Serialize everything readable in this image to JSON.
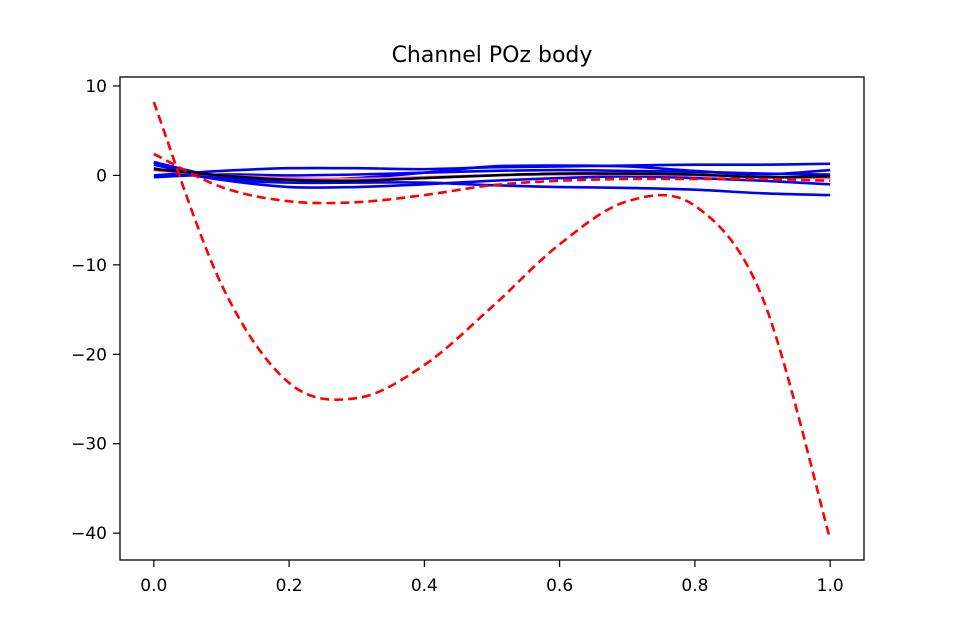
{
  "chart_data": {
    "type": "line",
    "title": "Channel POz body",
    "xlabel": "",
    "ylabel": "",
    "xlim": [
      -0.05,
      1.05
    ],
    "ylim": [
      -43,
      11
    ],
    "xticks": [
      0.0,
      0.2,
      0.4,
      0.6,
      0.8,
      1.0
    ],
    "xtick_labels": [
      "0.0",
      "0.2",
      "0.4",
      "0.6",
      "0.8",
      "1.0"
    ],
    "yticks": [
      10,
      0,
      -10,
      -20,
      -30,
      -40
    ],
    "ytick_labels": [
      "10",
      "0",
      "−10",
      "−20",
      "−30",
      "−40"
    ],
    "grid": false,
    "legend": "none",
    "colors": {
      "blue": "#0000ff",
      "red": "#ff0000",
      "black": "#000000",
      "pink": "#ff69b4"
    },
    "x": [
      0.0,
      0.1,
      0.2,
      0.3,
      0.4,
      0.5,
      0.6,
      0.7,
      0.8,
      0.9,
      1.0
    ],
    "series": [
      {
        "style": "solid",
        "color": "#0000ff",
        "values": [
          1.5,
          -0.2,
          -0.5,
          -0.3,
          0.3,
          1.0,
          1.1,
          1.0,
          0.5,
          0.1,
          0.6
        ]
      },
      {
        "style": "solid",
        "color": "#0000ff",
        "values": [
          0.0,
          0.5,
          0.8,
          0.8,
          0.7,
          0.9,
          1.0,
          1.1,
          1.2,
          1.2,
          1.3
        ]
      },
      {
        "style": "solid",
        "color": "#0000ff",
        "values": [
          0.8,
          -0.5,
          -1.3,
          -1.3,
          -1.0,
          -0.6,
          -0.3,
          -0.1,
          -0.3,
          -0.6,
          -1.0
        ]
      },
      {
        "style": "solid",
        "color": "#0000ff",
        "values": [
          1.2,
          -0.4,
          -0.8,
          -0.8,
          -0.8,
          -1.1,
          -1.3,
          -1.4,
          -1.6,
          -2.0,
          -2.2
        ]
      },
      {
        "style": "solid",
        "color": "#0000ff",
        "values": [
          -0.2,
          0.1,
          0.0,
          0.1,
          0.3,
          0.5,
          0.6,
          0.5,
          0.4,
          0.2,
          0.1
        ]
      },
      {
        "style": "solid",
        "color": "#ff69b4",
        "values": [
          0.6,
          0.0,
          -0.3,
          -0.4,
          -0.2,
          0.0,
          0.1,
          0.1,
          0.0,
          -0.2,
          -0.3
        ]
      },
      {
        "style": "solid",
        "color": "#000000",
        "values": [
          0.7,
          0.0,
          -0.5,
          -0.6,
          -0.3,
          0.0,
          0.2,
          0.2,
          0.1,
          -0.2,
          -0.1
        ]
      },
      {
        "style": "dashed",
        "color": "#ff0000",
        "values": [
          8.2,
          -12.2,
          -23.2,
          -24.9,
          -21.2,
          -14.7,
          -7.7,
          -2.9,
          -3.4,
          -13.7,
          -40.7
        ]
      },
      {
        "style": "dashed",
        "color": "#ff0000",
        "values": [
          2.4,
          -1.3,
          -2.9,
          -3.0,
          -2.2,
          -1.1,
          -0.6,
          -0.4,
          -0.4,
          -0.4,
          -0.6
        ]
      }
    ],
    "annotations": []
  }
}
